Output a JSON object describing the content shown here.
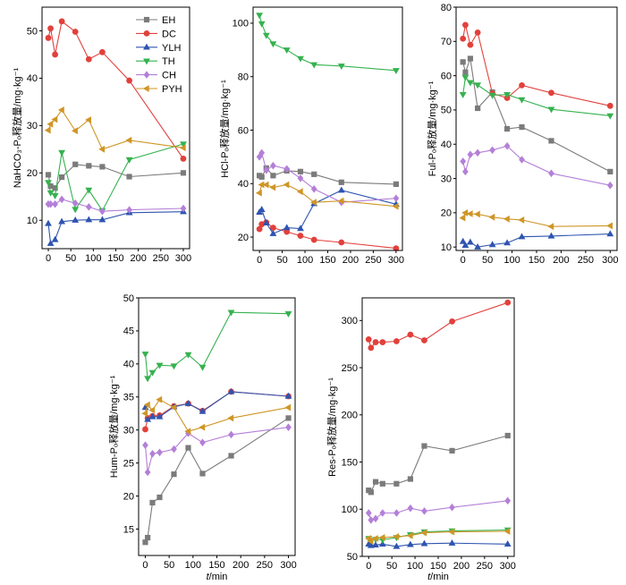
{
  "series_styles": [
    {
      "color": "#7b7b7b",
      "marker": "square"
    },
    {
      "color": "#e2403b",
      "marker": "circle"
    },
    {
      "color": "#2f54b0",
      "marker": "triangle-up"
    },
    {
      "color": "#35b24f",
      "marker": "triangle-down"
    },
    {
      "color": "#b47fd8",
      "marker": "diamond"
    },
    {
      "color": "#cf9626",
      "marker": "triangle-left"
    }
  ],
  "chart_data": [
    {
      "type": "line",
      "ylabel": "NaHCO₃-Pₒ释放量/mg·kg⁻¹",
      "legend": "top-right",
      "grid": false,
      "xlim": [
        -14,
        314
      ],
      "ylim": [
        4,
        55
      ],
      "xticks": [
        0,
        50,
        100,
        150,
        200,
        250,
        300
      ],
      "yticks": [
        10,
        20,
        30,
        40,
        50
      ],
      "x": [
        0,
        5,
        15,
        30,
        60,
        90,
        120,
        180,
        300
      ],
      "series": [
        {
          "name": "EH",
          "values": [
            19.6,
            17.2,
            16.8,
            19.1,
            21.8,
            21.5,
            21.3,
            19.2,
            20.0
          ]
        },
        {
          "name": "DC",
          "values": [
            48.5,
            50.5,
            45.0,
            52.0,
            49.8,
            44.0,
            45.5,
            39.5,
            23.0
          ]
        },
        {
          "name": "YLH",
          "values": [
            9.3,
            5.1,
            5.9,
            9.7,
            10.0,
            10.1,
            10.1,
            11.6,
            11.8
          ]
        },
        {
          "name": "TH",
          "values": [
            18.0,
            15.8,
            15.2,
            24.3,
            12.3,
            16.4,
            12.0,
            22.8,
            26.1
          ]
        },
        {
          "name": "CH",
          "values": [
            13.4,
            13.4,
            13.4,
            14.4,
            13.6,
            12.8,
            11.9,
            12.2,
            12.5
          ]
        },
        {
          "name": "PYH",
          "values": [
            29.0,
            30.3,
            31.3,
            33.3,
            28.9,
            31.2,
            25.0,
            26.9,
            25.3
          ]
        }
      ]
    },
    {
      "type": "line",
      "ylabel": "HCl-Pₒ释放量/mg·kg⁻¹",
      "grid": false,
      "xlim": [
        -14,
        314
      ],
      "ylim": [
        15,
        106
      ],
      "xticks": [
        0,
        50,
        100,
        150,
        200,
        250,
        300
      ],
      "yticks": [
        20,
        40,
        60,
        80,
        100
      ],
      "x": [
        0,
        5,
        15,
        30,
        60,
        90,
        120,
        180,
        300
      ],
      "series": [
        {
          "name": "EH",
          "values": [
            43.0,
            42.5,
            45.8,
            43.0,
            44.8,
            44.5,
            43.5,
            40.5,
            39.8
          ]
        },
        {
          "name": "DC",
          "values": [
            23.0,
            24.8,
            25.5,
            23.5,
            22.0,
            20.5,
            19.0,
            18.0,
            15.8
          ]
        },
        {
          "name": "YLH",
          "values": [
            29.3,
            30.3,
            25.3,
            21.3,
            23.5,
            23.2,
            32.5,
            37.5,
            32.3
          ]
        },
        {
          "name": "TH",
          "values": [
            103.0,
            99.8,
            95.5,
            92.3,
            90.0,
            86.8,
            84.5,
            84.0,
            82.3
          ]
        },
        {
          "name": "CH",
          "values": [
            50.0,
            51.5,
            45.0,
            46.7,
            45.5,
            42.0,
            38.0,
            33.0,
            34.5
          ]
        },
        {
          "name": "PYH",
          "values": [
            36.5,
            39.6,
            39.6,
            38.6,
            39.6,
            37.0,
            33.0,
            33.5,
            31.5
          ]
        }
      ]
    },
    {
      "type": "line",
      "ylabel": "Ful-Pₒ释放量/mg·kg⁻¹",
      "grid": false,
      "xlim": [
        -14,
        314
      ],
      "ylim": [
        9,
        80
      ],
      "xticks": [
        0,
        50,
        100,
        150,
        200,
        250,
        300
      ],
      "yticks": [
        10,
        20,
        30,
        40,
        50,
        60,
        70,
        80
      ],
      "x": [
        0,
        5,
        15,
        30,
        60,
        90,
        120,
        180,
        300
      ],
      "series": [
        {
          "name": "EH",
          "values": [
            64.0,
            61.0,
            65.0,
            50.5,
            55.2,
            44.5,
            45.0,
            41.0,
            32.0
          ]
        },
        {
          "name": "DC",
          "values": [
            70.8,
            74.8,
            69.0,
            72.6,
            54.8,
            53.5,
            57.2,
            55.0,
            51.2
          ]
        },
        {
          "name": "YLH",
          "values": [
            11.6,
            10.5,
            11.4,
            10.0,
            10.7,
            11.2,
            13.0,
            13.2,
            13.8
          ]
        },
        {
          "name": "TH",
          "values": [
            54.5,
            59.5,
            58.0,
            57.3,
            54.3,
            54.5,
            53.0,
            50.2,
            48.3
          ]
        },
        {
          "name": "CH",
          "values": [
            35.0,
            32.0,
            37.0,
            37.5,
            38.3,
            39.5,
            35.5,
            31.5,
            28.0
          ]
        },
        {
          "name": "PYH",
          "values": [
            18.5,
            20.0,
            19.7,
            19.6,
            18.7,
            18.2,
            17.9,
            16.0,
            16.2
          ]
        }
      ]
    },
    {
      "type": "line",
      "ylabel": "Hum-Pₒ释放量/mg·kg⁻¹",
      "xlabel_symbol": "t",
      "xlabel_unit": "/min",
      "grid": false,
      "xlim": [
        -14,
        314
      ],
      "ylim": [
        11,
        50
      ],
      "xticks": [
        0,
        50,
        100,
        150,
        200,
        250,
        300
      ],
      "yticks": [
        15,
        20,
        25,
        30,
        35,
        40,
        45,
        50
      ],
      "x": [
        0,
        5,
        15,
        30,
        60,
        90,
        120,
        180,
        300
      ],
      "series": [
        {
          "name": "EH",
          "values": [
            13.0,
            13.7,
            19.0,
            19.8,
            23.3,
            27.3,
            23.4,
            26.1,
            31.8
          ]
        },
        {
          "name": "DC",
          "values": [
            30.1,
            31.8,
            32.1,
            32.2,
            33.6,
            34.0,
            32.9,
            35.8,
            35.1
          ]
        },
        {
          "name": "YLH",
          "values": [
            33.4,
            31.6,
            32.0,
            32.0,
            33.5,
            34.0,
            32.8,
            35.8,
            35.1
          ]
        },
        {
          "name": "TH",
          "values": [
            41.5,
            37.8,
            38.7,
            39.8,
            39.7,
            41.4,
            39.5,
            47.8,
            47.6
          ]
        },
        {
          "name": "CH",
          "values": [
            27.7,
            23.6,
            26.4,
            26.6,
            27.1,
            29.5,
            28.1,
            29.3,
            30.4
          ]
        },
        {
          "name": "PYH",
          "values": [
            32.5,
            33.8,
            33.0,
            34.6,
            33.4,
            29.8,
            30.4,
            31.8,
            33.4
          ]
        }
      ]
    },
    {
      "type": "line",
      "ylabel": "Res-Pₒ释放量/mg·kg⁻¹",
      "xlabel_symbol": "t",
      "xlabel_unit": "/min",
      "grid": false,
      "xlim": [
        -14,
        314
      ],
      "ylim": [
        50,
        324
      ],
      "xticks": [
        0,
        50,
        100,
        150,
        200,
        250,
        300
      ],
      "yticks": [
        50,
        100,
        150,
        200,
        250,
        300
      ],
      "x": [
        0,
        5,
        15,
        30,
        60,
        90,
        120,
        180,
        300
      ],
      "series": [
        {
          "name": "EH",
          "values": [
            120,
            118,
            129,
            127,
            127,
            132,
            167,
            162,
            178
          ]
        },
        {
          "name": "DC",
          "values": [
            280,
            271,
            277,
            277,
            278,
            285,
            279,
            299,
            319
          ]
        },
        {
          "name": "YLH",
          "values": [
            63,
            61.5,
            62,
            63,
            60.5,
            62.5,
            63.5,
            64,
            63
          ]
        },
        {
          "name": "TH",
          "values": [
            69,
            67,
            68,
            67.5,
            70,
            73,
            76,
            77,
            78
          ]
        },
        {
          "name": "CH",
          "values": [
            96,
            88.5,
            90,
            96,
            96,
            101,
            98,
            102,
            109
          ]
        },
        {
          "name": "PYH",
          "values": [
            69,
            66,
            69,
            70,
            71,
            72,
            75,
            76,
            76.5
          ]
        }
      ]
    }
  ]
}
